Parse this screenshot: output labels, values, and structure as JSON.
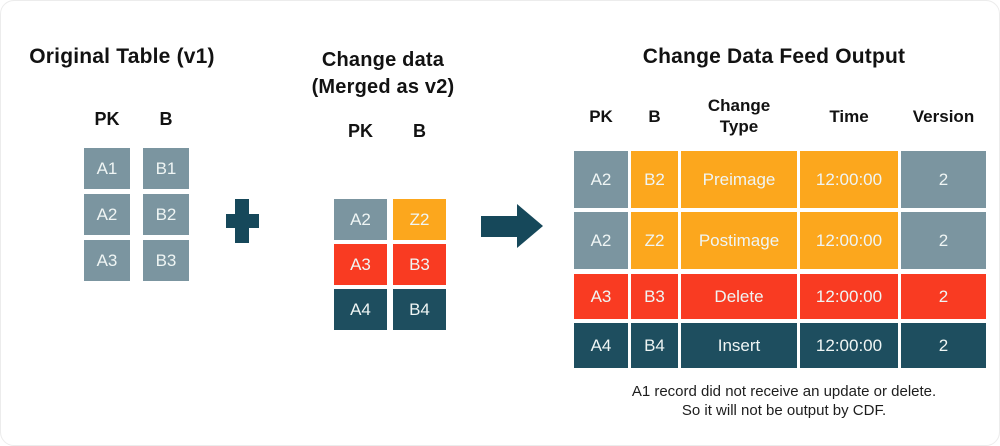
{
  "palette": {
    "slate": "#7B95A0",
    "orange": "#FCA71D",
    "red": "#F93B22",
    "teal": "#1E4E5F",
    "icon_teal": "#16485A",
    "cell_text": "#EFF5F4",
    "heading_text": "#121212"
  },
  "original_table": {
    "title": "Original Table (v1)",
    "headers": [
      "PK",
      "B"
    ],
    "rows": [
      [
        {
          "text": "A1",
          "color": "slate"
        },
        {
          "text": "B1",
          "color": "slate"
        }
      ],
      [
        {
          "text": "A2",
          "color": "slate"
        },
        {
          "text": "B2",
          "color": "slate"
        }
      ],
      [
        {
          "text": "A3",
          "color": "slate"
        },
        {
          "text": "B3",
          "color": "slate"
        }
      ]
    ]
  },
  "change_table": {
    "title_line1": "Change data",
    "title_line2": "(Merged as v2)",
    "headers": [
      "PK",
      "B"
    ],
    "rows": [
      [
        {
          "text": "A2",
          "color": "slate"
        },
        {
          "text": "Z2",
          "color": "orange"
        }
      ],
      [
        {
          "text": "A3",
          "color": "red"
        },
        {
          "text": "B3",
          "color": "red"
        }
      ],
      [
        {
          "text": "A4",
          "color": "teal"
        },
        {
          "text": "B4",
          "color": "teal"
        }
      ]
    ]
  },
  "cdf_table": {
    "title": "Change Data Feed Output",
    "headers": [
      "PK",
      "B",
      "Change Type",
      "Time",
      "Version"
    ],
    "rows": [
      [
        {
          "text": "A2",
          "color": "slate"
        },
        {
          "text": "B2",
          "color": "orange"
        },
        {
          "text": "Preimage",
          "color": "orange"
        },
        {
          "text": "12:00:00",
          "color": "orange"
        },
        {
          "text": "2",
          "color": "slate"
        }
      ],
      [
        {
          "text": "A2",
          "color": "slate"
        },
        {
          "text": "Z2",
          "color": "orange"
        },
        {
          "text": "Postimage",
          "color": "orange"
        },
        {
          "text": "12:00:00",
          "color": "orange"
        },
        {
          "text": "2",
          "color": "slate"
        }
      ],
      [
        {
          "text": "A3",
          "color": "red"
        },
        {
          "text": "B3",
          "color": "red"
        },
        {
          "text": "Delete",
          "color": "red"
        },
        {
          "text": "12:00:00",
          "color": "red"
        },
        {
          "text": "2",
          "color": "red"
        }
      ],
      [
        {
          "text": "A4",
          "color": "teal"
        },
        {
          "text": "B4",
          "color": "teal"
        },
        {
          "text": "Insert",
          "color": "teal"
        },
        {
          "text": "12:00:00",
          "color": "teal"
        },
        {
          "text": "2",
          "color": "teal"
        }
      ]
    ],
    "note_line1": "A1 record did not receive an update or delete.",
    "note_line2": "So it will not be output by CDF."
  }
}
